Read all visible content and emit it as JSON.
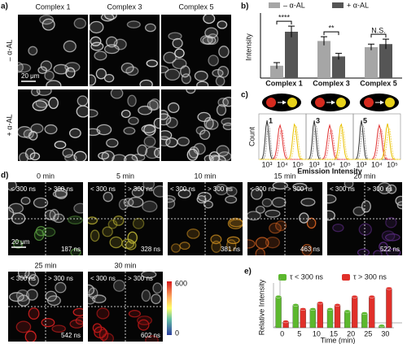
{
  "panel_a": {
    "label": "a)",
    "columns": [
      "Complex 1",
      "Complex 3",
      "Complex 5"
    ],
    "rows": [
      "– α-AL",
      "+ α-AL"
    ],
    "scale_bar": "20 μm"
  },
  "chart_data": [
    {
      "type": "bar",
      "label": "b)",
      "categories": [
        "Complex 1",
        "Complex 3",
        "Complex 5"
      ],
      "y_label": "Intensity",
      "ylim": [
        0,
        1
      ],
      "series": [
        {
          "name": "– α-AL",
          "color": "#a6a6a6",
          "values": [
            0.2,
            0.6,
            0.5
          ],
          "errors": [
            0.05,
            0.07,
            0.05
          ]
        },
        {
          "name": "+ α-AL",
          "color": "#555555",
          "values": [
            0.75,
            0.35,
            0.55
          ],
          "errors": [
            0.09,
            0.05,
            0.08
          ]
        }
      ],
      "significance": [
        "****",
        "**",
        "N.S."
      ]
    },
    {
      "type": "cylinder",
      "label": "e)",
      "categories": [
        "0",
        "5",
        "10",
        "15",
        "20",
        "25",
        "30"
      ],
      "x_label": "Time (min)",
      "y_label": "Relative Intensity",
      "ylim": [
        0,
        1
      ],
      "series": [
        {
          "name": "τ < 300 ns",
          "color": "#5cb82e",
          "values": [
            0.75,
            0.55,
            0.45,
            0.45,
            0.4,
            0.35,
            0.05
          ]
        },
        {
          "name": "τ > 300 ns",
          "color": "#e0302a",
          "values": [
            0.15,
            0.45,
            0.6,
            0.55,
            0.75,
            0.75,
            0.95
          ]
        }
      ]
    }
  ],
  "panel_c": {
    "label": "c)",
    "subpanels": [
      "1",
      "3",
      "5"
    ],
    "x_ticks": [
      "10³",
      "10⁴",
      "10⁵"
    ],
    "y_label": "Count",
    "x_label": "Emission Intensity"
  },
  "panel_d": {
    "label": "d)",
    "short": "< 300 ns",
    "long": "> 300 ns",
    "scale_bar": "20 μm",
    "frames": [
      {
        "time": "0 min",
        "lifetime": "187 ns"
      },
      {
        "time": "5 min",
        "lifetime": "328 ns"
      },
      {
        "time": "10 min",
        "lifetime": "381 ns"
      },
      {
        "time": "15 min",
        "lifetime": "463 ns"
      },
      {
        "time": "20 min",
        "lifetime": "522 ns"
      },
      {
        "time": "25 min",
        "lifetime": "542 ns"
      },
      {
        "time": "30 min",
        "lifetime": "602 ns"
      }
    ],
    "colorbar": [
      "600",
      "0"
    ]
  }
}
